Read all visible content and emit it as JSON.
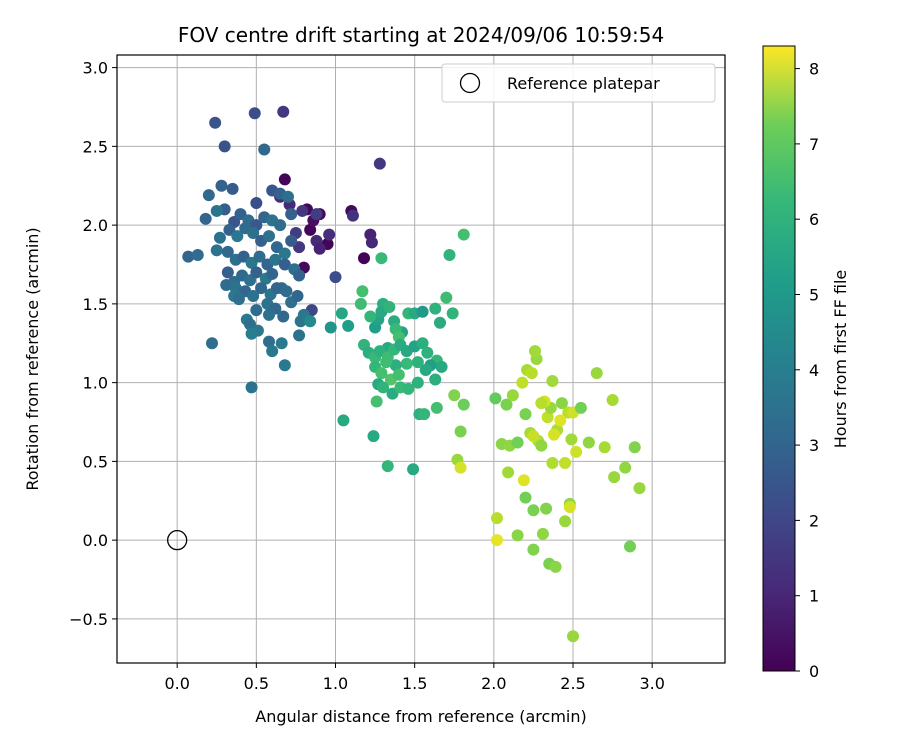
{
  "chart_data": {
    "type": "scatter",
    "title": "FOV centre drift starting at 2024/09/06 10:59:54",
    "xlabel": "Angular distance from reference (arcmin)",
    "ylabel": "Rotation from reference (arcmin)",
    "xlim": [
      -0.38,
      3.46
    ],
    "ylim": [
      -0.78,
      3.08
    ],
    "xticks": [
      0.0,
      0.5,
      1.0,
      1.5,
      2.0,
      2.5,
      3.0
    ],
    "xtick_labels": [
      "0.0",
      "0.5",
      "1.0",
      "1.5",
      "2.0",
      "2.5",
      "3.0"
    ],
    "yticks": [
      -0.5,
      0.0,
      0.5,
      1.0,
      1.5,
      2.0,
      2.5,
      3.0
    ],
    "ytick_labels": [
      "−0.5",
      "0.0",
      "0.5",
      "1.0",
      "1.5",
      "2.0",
      "2.5",
      "3.0"
    ],
    "grid": true,
    "legend": {
      "placement": "top-right",
      "entries": [
        "Reference platepar"
      ]
    },
    "reference_point": {
      "name": "Reference platepar",
      "x": 0.0,
      "y": 0.0
    },
    "colorbar": {
      "label": "Hours from first FF file",
      "range": [
        0,
        8.3
      ],
      "ticks": [
        0,
        1,
        2,
        3,
        4,
        5,
        6,
        7,
        8
      ],
      "tick_labels": [
        "0",
        "1",
        "2",
        "3",
        "4",
        "5",
        "6",
        "7",
        "8"
      ],
      "colormap": "viridis"
    },
    "points": [
      [
        0.68,
        2.29,
        0.1
      ],
      [
        0.82,
        2.1,
        0.15
      ],
      [
        0.9,
        2.07,
        0.2
      ],
      [
        0.84,
        1.97,
        0.1
      ],
      [
        0.86,
        2.03,
        0.3
      ],
      [
        0.95,
        1.88,
        0.1
      ],
      [
        0.8,
        1.73,
        0.2
      ],
      [
        1.1,
        2.09,
        0.2
      ],
      [
        1.18,
        1.79,
        0.1
      ],
      [
        1.22,
        1.94,
        0.8
      ],
      [
        1.23,
        1.89,
        0.9
      ],
      [
        1.28,
        2.39,
        1.3
      ],
      [
        1.11,
        2.06,
        1.2
      ],
      [
        0.96,
        1.94,
        1.1
      ],
      [
        0.88,
        1.9,
        1.0
      ],
      [
        0.9,
        1.85,
        0.8
      ],
      [
        0.88,
        2.07,
        1.5
      ],
      [
        0.79,
        2.09,
        1.3
      ],
      [
        0.77,
        1.86,
        1.3
      ],
      [
        0.71,
        2.13,
        1.0
      ],
      [
        0.65,
        2.18,
        1.0
      ],
      [
        0.75,
        1.95,
        1.5
      ],
      [
        0.85,
        1.46,
        1.8
      ],
      [
        1.0,
        1.67,
        2.0
      ],
      [
        0.67,
        2.72,
        1.4
      ],
      [
        0.49,
        2.71,
        2.0
      ],
      [
        0.24,
        2.65,
        2.2
      ],
      [
        0.3,
        2.5,
        2.1
      ],
      [
        0.55,
        2.48,
        2.8
      ],
      [
        0.28,
        2.25,
        2.6
      ],
      [
        0.35,
        2.23,
        2.4
      ],
      [
        0.2,
        2.19,
        2.8
      ],
      [
        0.5,
        2.14,
        2.0
      ],
      [
        0.6,
        2.22,
        2.3
      ],
      [
        0.65,
        2.2,
        2.6
      ],
      [
        0.7,
        2.18,
        3.0
      ],
      [
        0.3,
        2.1,
        2.5
      ],
      [
        0.36,
        2.02,
        2.2
      ],
      [
        0.25,
        2.09,
        3.2
      ],
      [
        0.4,
        2.07,
        2.6
      ],
      [
        0.45,
        2.03,
        2.9
      ],
      [
        0.5,
        2.0,
        2.3
      ],
      [
        0.55,
        2.05,
        2.7
      ],
      [
        0.6,
        2.03,
        3.2
      ],
      [
        0.65,
        2.0,
        2.9
      ],
      [
        0.72,
        2.07,
        2.5
      ],
      [
        0.18,
        2.04,
        2.7
      ],
      [
        0.27,
        1.92,
        3.1
      ],
      [
        0.33,
        1.97,
        2.6
      ],
      [
        0.38,
        1.93,
        3.3
      ],
      [
        0.43,
        1.98,
        2.9
      ],
      [
        0.48,
        1.95,
        3.0
      ],
      [
        0.53,
        1.9,
        2.5
      ],
      [
        0.58,
        1.93,
        3.1
      ],
      [
        0.63,
        1.86,
        2.8
      ],
      [
        0.68,
        1.82,
        3.3
      ],
      [
        0.72,
        1.9,
        2.4
      ],
      [
        0.07,
        1.8,
        2.7
      ],
      [
        0.13,
        1.81,
        2.9
      ],
      [
        0.25,
        1.84,
        3.2
      ],
      [
        0.32,
        1.83,
        2.8
      ],
      [
        0.37,
        1.78,
        3.0
      ],
      [
        0.42,
        1.8,
        2.6
      ],
      [
        0.47,
        1.76,
        3.3
      ],
      [
        0.52,
        1.8,
        2.9
      ],
      [
        0.57,
        1.75,
        2.7
      ],
      [
        0.62,
        1.78,
        3.2
      ],
      [
        0.68,
        1.75,
        2.5
      ],
      [
        0.74,
        1.72,
        3.0
      ],
      [
        0.32,
        1.7,
        2.5
      ],
      [
        0.36,
        1.64,
        3.0
      ],
      [
        0.41,
        1.68,
        2.8
      ],
      [
        0.46,
        1.65,
        3.1
      ],
      [
        0.5,
        1.7,
        2.6
      ],
      [
        0.56,
        1.66,
        3.3
      ],
      [
        0.6,
        1.69,
        2.7
      ],
      [
        0.66,
        1.6,
        3.0
      ],
      [
        0.77,
        1.68,
        2.6
      ],
      [
        0.31,
        1.62,
        2.9
      ],
      [
        0.37,
        1.6,
        3.2
      ],
      [
        0.43,
        1.58,
        2.7
      ],
      [
        0.48,
        1.55,
        3.1
      ],
      [
        0.53,
        1.6,
        2.8
      ],
      [
        0.59,
        1.56,
        3.2
      ],
      [
        0.63,
        1.6,
        2.7
      ],
      [
        0.69,
        1.58,
        2.9
      ],
      [
        0.36,
        1.55,
        3.3
      ],
      [
        0.39,
        1.53,
        3.0
      ],
      [
        0.5,
        1.46,
        2.9
      ],
      [
        0.57,
        1.5,
        3.2
      ],
      [
        0.62,
        1.47,
        2.8
      ],
      [
        0.72,
        1.51,
        3.0
      ],
      [
        0.76,
        1.55,
        2.7
      ],
      [
        0.44,
        1.4,
        3.4
      ],
      [
        0.46,
        1.37,
        3.0
      ],
      [
        0.51,
        1.33,
        3.3
      ],
      [
        0.58,
        1.43,
        3.1
      ],
      [
        0.67,
        1.42,
        2.8
      ],
      [
        0.78,
        1.39,
        3.2
      ],
      [
        0.8,
        1.43,
        3.3
      ],
      [
        0.47,
        1.31,
        3.5
      ],
      [
        0.58,
        1.26,
        3.0
      ],
      [
        0.66,
        1.25,
        3.4
      ],
      [
        0.77,
        1.3,
        3.1
      ],
      [
        0.6,
        1.2,
        3.3
      ],
      [
        0.22,
        1.25,
        3.0
      ],
      [
        0.68,
        1.11,
        3.4
      ],
      [
        0.47,
        0.97,
        3.2
      ],
      [
        0.84,
        1.39,
        3.9
      ],
      [
        0.97,
        1.35,
        4.3
      ],
      [
        1.04,
        1.44,
        4.9
      ],
      [
        1.08,
        1.36,
        4.6
      ],
      [
        1.05,
        0.76,
        5.0
      ],
      [
        1.25,
        1.35,
        4.6
      ],
      [
        1.27,
        1.4,
        4.8
      ],
      [
        1.3,
        1.5,
        5.2
      ],
      [
        1.29,
        1.45,
        5.0
      ],
      [
        1.34,
        1.48,
        5.4
      ],
      [
        1.37,
        1.39,
        5.1
      ],
      [
        1.42,
        1.32,
        4.8
      ],
      [
        1.46,
        1.44,
        5.5
      ],
      [
        1.5,
        1.44,
        5.0
      ],
      [
        1.55,
        1.45,
        4.4
      ],
      [
        1.63,
        1.47,
        5.3
      ],
      [
        1.7,
        1.54,
        5.7
      ],
      [
        1.72,
        1.81,
        5.4
      ],
      [
        1.81,
        1.94,
        5.8
      ],
      [
        1.29,
        1.79,
        5.6
      ],
      [
        1.17,
        1.58,
        5.8
      ],
      [
        1.16,
        1.5,
        5.7
      ],
      [
        1.22,
        1.42,
        5.5
      ],
      [
        1.38,
        1.34,
        5.6
      ],
      [
        1.4,
        1.29,
        5.8
      ],
      [
        1.33,
        1.22,
        5.0
      ],
      [
        1.18,
        1.24,
        5.4
      ],
      [
        1.21,
        1.19,
        5.2
      ],
      [
        1.25,
        1.16,
        5.6
      ],
      [
        1.28,
        1.2,
        5.3
      ],
      [
        1.33,
        1.16,
        5.7
      ],
      [
        1.37,
        1.21,
        5.5
      ],
      [
        1.41,
        1.24,
        5.1
      ],
      [
        1.45,
        1.2,
        5.0
      ],
      [
        1.5,
        1.23,
        4.8
      ],
      [
        1.55,
        1.25,
        5.2
      ],
      [
        1.58,
        1.19,
        5.3
      ],
      [
        1.64,
        1.14,
        5.5
      ],
      [
        1.67,
        1.1,
        5.0
      ],
      [
        1.6,
        1.11,
        4.7
      ],
      [
        1.52,
        1.13,
        5.3
      ],
      [
        1.45,
        1.12,
        5.6
      ],
      [
        1.38,
        1.11,
        5.2
      ],
      [
        1.32,
        1.13,
        5.7
      ],
      [
        1.25,
        1.1,
        5.5
      ],
      [
        1.29,
        1.06,
        5.8
      ],
      [
        1.35,
        1.02,
        6.0
      ],
      [
        1.4,
        1.05,
        5.8
      ],
      [
        1.27,
        0.99,
        5.0
      ],
      [
        1.3,
        0.97,
        5.4
      ],
      [
        1.36,
        0.93,
        5.1
      ],
      [
        1.41,
        0.97,
        5.6
      ],
      [
        1.46,
        0.96,
        5.5
      ],
      [
        1.52,
        1.0,
        5.3
      ],
      [
        1.57,
        1.08,
        5.0
      ],
      [
        1.63,
        1.02,
        5.2
      ],
      [
        1.66,
        1.38,
        5.1
      ],
      [
        1.74,
        1.44,
        5.4
      ],
      [
        1.24,
        0.66,
        5.0
      ],
      [
        1.26,
        0.88,
        5.8
      ],
      [
        1.33,
        0.47,
        5.5
      ],
      [
        1.49,
        0.45,
        5.0
      ],
      [
        1.53,
        0.8,
        5.3
      ],
      [
        1.56,
        0.8,
        5.5
      ],
      [
        1.64,
        0.84,
        5.8
      ],
      [
        1.75,
        0.92,
        6.7
      ],
      [
        1.79,
        0.69,
        6.6
      ],
      [
        1.81,
        0.86,
        6.4
      ],
      [
        1.77,
        0.51,
        7.0
      ],
      [
        1.79,
        0.46,
        7.8
      ],
      [
        2.01,
        0.9,
        6.3
      ],
      [
        2.05,
        0.61,
        6.8
      ],
      [
        2.08,
        0.86,
        6.6
      ],
      [
        2.1,
        0.6,
        6.9
      ],
      [
        2.12,
        0.92,
        7.0
      ],
      [
        2.15,
        0.62,
        6.5
      ],
      [
        2.18,
        1.0,
        7.5
      ],
      [
        2.21,
        1.08,
        7.2
      ],
      [
        2.2,
        0.8,
        6.6
      ],
      [
        2.24,
        1.06,
        7.4
      ],
      [
        2.27,
        1.15,
        7.0
      ],
      [
        2.23,
        0.68,
        7.2
      ],
      [
        2.26,
        1.2,
        7.1
      ],
      [
        2.28,
        0.63,
        7.3
      ],
      [
        2.3,
        0.6,
        6.9
      ],
      [
        2.34,
        0.78,
        7.5
      ],
      [
        2.36,
        0.84,
        7.0
      ],
      [
        2.37,
        1.01,
        7.1
      ],
      [
        2.32,
        0.88,
        7.8
      ],
      [
        2.4,
        0.7,
        7.3
      ],
      [
        2.43,
        0.87,
        6.8
      ],
      [
        2.47,
        0.81,
        7.4
      ],
      [
        2.5,
        0.81,
        7.7
      ],
      [
        2.55,
        0.84,
        6.5
      ],
      [
        2.6,
        0.62,
        6.9
      ],
      [
        2.65,
        1.06,
        7.0
      ],
      [
        2.7,
        0.59,
        7.2
      ],
      [
        2.75,
        0.89,
        7.2
      ],
      [
        2.76,
        0.4,
        7.0
      ],
      [
        2.83,
        0.46,
        6.9
      ],
      [
        2.89,
        0.59,
        6.7
      ],
      [
        2.92,
        0.33,
        7.0
      ],
      [
        2.86,
        -0.04,
        6.5
      ],
      [
        2.48,
        0.23,
        6.9
      ],
      [
        2.49,
        0.64,
        7.1
      ],
      [
        2.52,
        0.56,
        7.7
      ],
      [
        2.48,
        0.21,
        7.8
      ],
      [
        2.38,
        0.67,
        7.8
      ],
      [
        2.42,
        0.76,
        7.9
      ],
      [
        2.37,
        0.49,
        7.3
      ],
      [
        2.45,
        0.49,
        7.5
      ],
      [
        2.3,
        0.87,
        7.4
      ],
      [
        2.25,
        0.66,
        7.6
      ],
      [
        2.19,
        0.38,
        7.9
      ],
      [
        2.09,
        0.43,
        7.1
      ],
      [
        2.02,
        0.14,
        7.4
      ],
      [
        2.02,
        0.0,
        8.0
      ],
      [
        2.15,
        0.03,
        6.8
      ],
      [
        2.2,
        0.27,
        6.5
      ],
      [
        2.25,
        0.19,
        6.6
      ],
      [
        2.25,
        -0.06,
        6.7
      ],
      [
        2.31,
        0.04,
        6.9
      ],
      [
        2.33,
        0.2,
        6.7
      ],
      [
        2.35,
        -0.15,
        6.6
      ],
      [
        2.39,
        -0.17,
        6.8
      ],
      [
        2.45,
        0.12,
        7.0
      ],
      [
        2.5,
        -0.61,
        7.0
      ]
    ]
  }
}
